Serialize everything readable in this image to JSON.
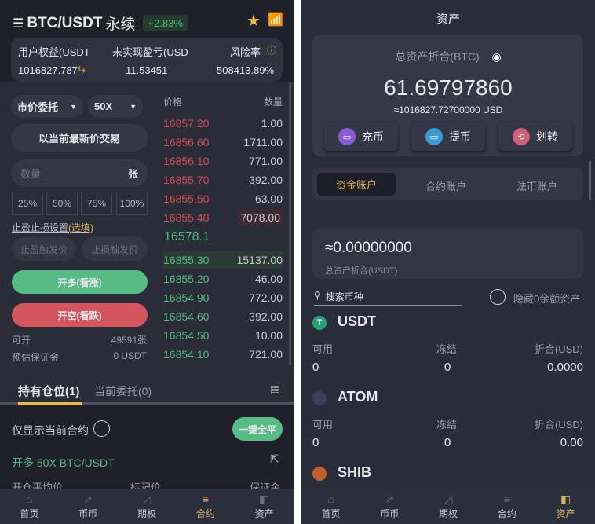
{
  "futures": {
    "title": "BTC/USDT",
    "title_suffix": "永续",
    "change": "+2.83%",
    "info": {
      "equity_label": "用户权益(USDT",
      "equity_value": "1016827.787",
      "pnl_label": "未实现盈亏(USD",
      "pnl_value": "11.53451",
      "risk_label": "风险率",
      "risk_value": "508413.89%"
    },
    "order_type": "市价委托",
    "leverage": "50X",
    "market_trade": "以当前最新价交易",
    "qty_placeholder": "数量",
    "qty_unit": "张",
    "percents": [
      "25%",
      "50%",
      "75%",
      "100%"
    ],
    "tpsl_label": "止盈止损设置",
    "tpsl_optional": "(选填)",
    "tp_placeholder": "止盈触发价",
    "sl_placeholder": "止损触发价",
    "long_button": "开多(看涨)",
    "short_button": "开空(看跌)",
    "available_label": "可开",
    "available_value": "49591张",
    "margin_label": "预估保证金",
    "margin_value": "0 USDT",
    "orderbook": {
      "price_header": "价格",
      "qty_header": "数量",
      "asks": [
        {
          "p": "16857.20",
          "q": "1.00"
        },
        {
          "p": "16856.60",
          "q": "1711.00"
        },
        {
          "p": "16856.10",
          "q": "771.00"
        },
        {
          "p": "16855.70",
          "q": "392.00"
        },
        {
          "p": "16855.50",
          "q": "63.00"
        },
        {
          "p": "16855.40",
          "q": "7078.00"
        }
      ],
      "last": "16578.1",
      "bids": [
        {
          "p": "16855.30",
          "q": "15137.00"
        },
        {
          "p": "16855.20",
          "q": "46.00"
        },
        {
          "p": "16854.90",
          "q": "772.00"
        },
        {
          "p": "16854.60",
          "q": "392.00"
        },
        {
          "p": "16854.50",
          "q": "10.00"
        },
        {
          "p": "16854.10",
          "q": "721.00"
        }
      ]
    },
    "tabs": [
      "持有仓位(1)",
      "当前委托(0)"
    ],
    "only_current": "仅显示当前合约",
    "close_all": "一键全平",
    "position": "开多 50X BTC/USDT",
    "pos_headers": [
      "开仓平均价",
      "标记价",
      "保证金"
    ]
  },
  "assets": {
    "title": "资产",
    "total_label": "总资产折合(BTC)",
    "total_btc": "61.69797860",
    "total_usd": "≈1016827.72700000 USD",
    "actions": [
      "充币",
      "提币",
      "划转"
    ],
    "tabs": [
      "资金账户",
      "合约账户",
      "法币账户"
    ],
    "usdt_total": "≈0.00000000",
    "usdt_total_label": "总资产折合(USDT)",
    "search_placeholder": "搜索币种",
    "hide_zero": "隐藏0余额资产",
    "col_labels": [
      "可用",
      "冻结",
      "折合(USD)"
    ],
    "coins": [
      {
        "name": "USDT",
        "available": "0",
        "frozen": "0",
        "usd": "0.0000"
      },
      {
        "name": "ATOM",
        "available": "0",
        "frozen": "0",
        "usd": "0.00"
      },
      {
        "name": "SHIB"
      }
    ]
  },
  "nav": [
    "首页",
    "币币",
    "期权",
    "合约",
    "资产"
  ],
  "colors": {
    "accent": "#d9b25a",
    "up": "#4fba80",
    "down": "#d04a52"
  }
}
